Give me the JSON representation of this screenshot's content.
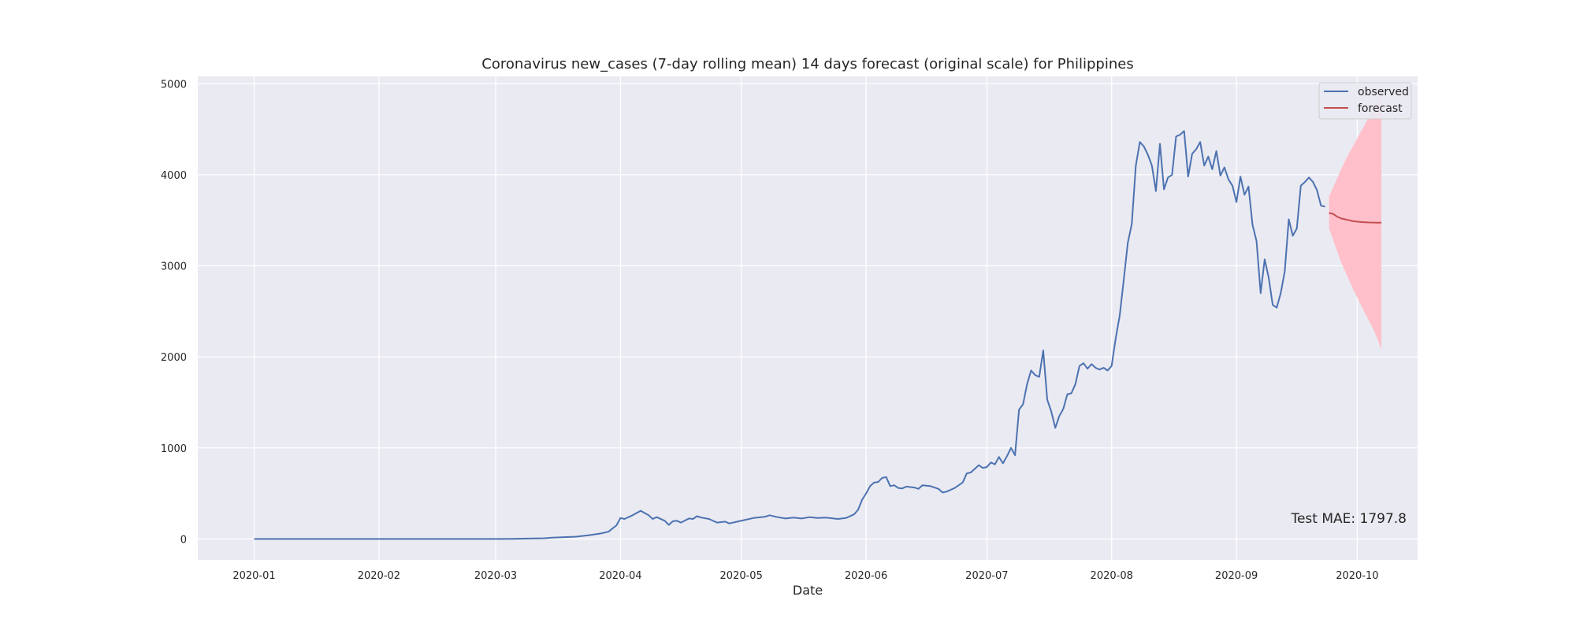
{
  "chart_data": {
    "type": "line",
    "title": "Coronavirus new_cases (7-day rolling mean) 14 days forecast (original scale) for Philippines",
    "xlabel": "Date",
    "ylabel": "",
    "x_type": "date",
    "xlim": [
      "2019-12-18",
      "2020-10-16"
    ],
    "ylim": [
      -230,
      5080
    ],
    "x_ticks": [
      "2020-01-01",
      "2020-02-01",
      "2020-03-01",
      "2020-04-01",
      "2020-05-01",
      "2020-06-01",
      "2020-07-01",
      "2020-08-01",
      "2020-09-01",
      "2020-10-01"
    ],
    "x_tick_labels": [
      "2020-01",
      "2020-02",
      "2020-03",
      "2020-04",
      "2020-05",
      "2020-06",
      "2020-07",
      "2020-08",
      "2020-09",
      "2020-10"
    ],
    "y_ticks": [
      0,
      1000,
      2000,
      3000,
      4000,
      5000
    ],
    "y_tick_labels": [
      "0",
      "1000",
      "2000",
      "3000",
      "4000",
      "5000"
    ],
    "grid": true,
    "legend_position": "top-right",
    "annotation": "Test MAE: 1797.8",
    "colors": {
      "background": "#eaeaf2",
      "grid": "#ffffff",
      "observed": "#4c72b0",
      "forecast": "#c44e52",
      "confidence_band": "#ffc0cb"
    },
    "series": [
      {
        "name": "observed",
        "color": "#4c72b0",
        "points": [
          [
            "2020-01-01",
            0
          ],
          [
            "2020-02-01",
            0
          ],
          [
            "2020-03-01",
            0
          ],
          [
            "2020-03-05",
            2
          ],
          [
            "2020-03-10",
            5
          ],
          [
            "2020-03-13",
            8
          ],
          [
            "2020-03-15",
            15
          ],
          [
            "2020-03-18",
            20
          ],
          [
            "2020-03-21",
            25
          ],
          [
            "2020-03-24",
            40
          ],
          [
            "2020-03-27",
            60
          ],
          [
            "2020-03-29",
            80
          ],
          [
            "2020-03-31",
            150
          ],
          [
            "2020-04-01",
            230
          ],
          [
            "2020-04-02",
            220
          ],
          [
            "2020-04-04",
            260
          ],
          [
            "2020-04-06",
            310
          ],
          [
            "2020-04-08",
            260
          ],
          [
            "2020-04-09",
            220
          ],
          [
            "2020-04-10",
            240
          ],
          [
            "2020-04-12",
            200
          ],
          [
            "2020-04-13",
            155
          ],
          [
            "2020-04-14",
            195
          ],
          [
            "2020-04-15",
            200
          ],
          [
            "2020-04-16",
            180
          ],
          [
            "2020-04-18",
            225
          ],
          [
            "2020-04-19",
            220
          ],
          [
            "2020-04-20",
            250
          ],
          [
            "2020-04-21",
            235
          ],
          [
            "2020-04-23",
            220
          ],
          [
            "2020-04-25",
            180
          ],
          [
            "2020-04-27",
            190
          ],
          [
            "2020-04-28",
            170
          ],
          [
            "2020-04-30",
            190
          ],
          [
            "2020-05-02",
            210
          ],
          [
            "2020-05-04",
            230
          ],
          [
            "2020-05-07",
            245
          ],
          [
            "2020-05-08",
            260
          ],
          [
            "2020-05-10",
            240
          ],
          [
            "2020-05-12",
            225
          ],
          [
            "2020-05-14",
            235
          ],
          [
            "2020-05-16",
            225
          ],
          [
            "2020-05-18",
            240
          ],
          [
            "2020-05-20",
            230
          ],
          [
            "2020-05-22",
            235
          ],
          [
            "2020-05-25",
            220
          ],
          [
            "2020-05-27",
            230
          ],
          [
            "2020-05-29",
            270
          ],
          [
            "2020-05-30",
            320
          ],
          [
            "2020-05-31",
            430
          ],
          [
            "2020-06-01",
            500
          ],
          [
            "2020-06-02",
            580
          ],
          [
            "2020-06-03",
            620
          ],
          [
            "2020-06-04",
            625
          ],
          [
            "2020-06-05",
            670
          ],
          [
            "2020-06-06",
            680
          ],
          [
            "2020-06-07",
            580
          ],
          [
            "2020-06-08",
            590
          ],
          [
            "2020-06-09",
            560
          ],
          [
            "2020-06-10",
            555
          ],
          [
            "2020-06-11",
            575
          ],
          [
            "2020-06-13",
            565
          ],
          [
            "2020-06-14",
            550
          ],
          [
            "2020-06-15",
            590
          ],
          [
            "2020-06-17",
            580
          ],
          [
            "2020-06-19",
            550
          ],
          [
            "2020-06-20",
            510
          ],
          [
            "2020-06-21",
            520
          ],
          [
            "2020-06-22",
            540
          ],
          [
            "2020-06-23",
            560
          ],
          [
            "2020-06-24",
            590
          ],
          [
            "2020-06-25",
            620
          ],
          [
            "2020-06-26",
            720
          ],
          [
            "2020-06-27",
            730
          ],
          [
            "2020-06-29",
            810
          ],
          [
            "2020-06-30",
            780
          ],
          [
            "2020-07-01",
            790
          ],
          [
            "2020-07-02",
            840
          ],
          [
            "2020-07-03",
            820
          ],
          [
            "2020-07-04",
            900
          ],
          [
            "2020-07-05",
            830
          ],
          [
            "2020-07-06",
            910
          ],
          [
            "2020-07-07",
            1000
          ],
          [
            "2020-07-08",
            920
          ],
          [
            "2020-07-09",
            1420
          ],
          [
            "2020-07-10",
            1480
          ],
          [
            "2020-07-11",
            1700
          ],
          [
            "2020-07-12",
            1850
          ],
          [
            "2020-07-13",
            1800
          ],
          [
            "2020-07-14",
            1780
          ],
          [
            "2020-07-15",
            2070
          ],
          [
            "2020-07-16",
            1530
          ],
          [
            "2020-07-17",
            1400
          ],
          [
            "2020-07-18",
            1220
          ],
          [
            "2020-07-19",
            1350
          ],
          [
            "2020-07-20",
            1430
          ],
          [
            "2020-07-21",
            1590
          ],
          [
            "2020-07-22",
            1600
          ],
          [
            "2020-07-23",
            1700
          ],
          [
            "2020-07-24",
            1900
          ],
          [
            "2020-07-25",
            1930
          ],
          [
            "2020-07-26",
            1870
          ],
          [
            "2020-07-27",
            1920
          ],
          [
            "2020-07-28",
            1880
          ],
          [
            "2020-07-29",
            1860
          ],
          [
            "2020-07-30",
            1880
          ],
          [
            "2020-07-31",
            1850
          ],
          [
            "2020-08-01",
            1900
          ],
          [
            "2020-08-02",
            2200
          ],
          [
            "2020-08-03",
            2450
          ],
          [
            "2020-08-04",
            2840
          ],
          [
            "2020-08-05",
            3250
          ],
          [
            "2020-08-06",
            3460
          ],
          [
            "2020-08-07",
            4100
          ],
          [
            "2020-08-08",
            4360
          ],
          [
            "2020-08-09",
            4310
          ],
          [
            "2020-08-10",
            4220
          ],
          [
            "2020-08-11",
            4100
          ],
          [
            "2020-08-12",
            3820
          ],
          [
            "2020-08-13",
            4340
          ],
          [
            "2020-08-14",
            3840
          ],
          [
            "2020-08-15",
            3970
          ],
          [
            "2020-08-16",
            4000
          ],
          [
            "2020-08-17",
            4420
          ],
          [
            "2020-08-18",
            4440
          ],
          [
            "2020-08-19",
            4480
          ],
          [
            "2020-08-20",
            3980
          ],
          [
            "2020-08-21",
            4230
          ],
          [
            "2020-08-22",
            4280
          ],
          [
            "2020-08-23",
            4360
          ],
          [
            "2020-08-24",
            4100
          ],
          [
            "2020-08-25",
            4200
          ],
          [
            "2020-08-26",
            4060
          ],
          [
            "2020-08-27",
            4260
          ],
          [
            "2020-08-28",
            3990
          ],
          [
            "2020-08-29",
            4080
          ],
          [
            "2020-08-30",
            3950
          ],
          [
            "2020-08-31",
            3880
          ],
          [
            "2020-09-01",
            3700
          ],
          [
            "2020-09-02",
            3980
          ],
          [
            "2020-09-03",
            3780
          ],
          [
            "2020-09-04",
            3870
          ],
          [
            "2020-09-05",
            3450
          ],
          [
            "2020-09-06",
            3270
          ],
          [
            "2020-09-07",
            2700
          ],
          [
            "2020-09-08",
            3070
          ],
          [
            "2020-09-09",
            2870
          ],
          [
            "2020-09-10",
            2570
          ],
          [
            "2020-09-11",
            2540
          ],
          [
            "2020-09-12",
            2700
          ],
          [
            "2020-09-13",
            2940
          ],
          [
            "2020-09-14",
            3510
          ],
          [
            "2020-09-15",
            3330
          ],
          [
            "2020-09-16",
            3410
          ],
          [
            "2020-09-17",
            3880
          ],
          [
            "2020-09-18",
            3920
          ],
          [
            "2020-09-19",
            3970
          ],
          [
            "2020-09-20",
            3920
          ],
          [
            "2020-09-21",
            3830
          ],
          [
            "2020-09-22",
            3660
          ],
          [
            "2020-09-23",
            3650
          ]
        ]
      },
      {
        "name": "forecast",
        "color": "#c44e52",
        "points": [
          [
            "2020-09-24",
            3580
          ],
          [
            "2020-09-25",
            3570
          ],
          [
            "2020-09-26",
            3540
          ],
          [
            "2020-09-27",
            3520
          ],
          [
            "2020-09-28",
            3510
          ],
          [
            "2020-09-29",
            3500
          ],
          [
            "2020-09-30",
            3490
          ],
          [
            "2020-10-01",
            3485
          ],
          [
            "2020-10-02",
            3480
          ],
          [
            "2020-10-03",
            3478
          ],
          [
            "2020-10-04",
            3476
          ],
          [
            "2020-10-05",
            3475
          ],
          [
            "2020-10-06",
            3474
          ],
          [
            "2020-10-07",
            3473
          ]
        ]
      }
    ],
    "confidence_band": {
      "points": [
        [
          "2020-09-24",
          3410,
          3760
        ],
        [
          "2020-09-25",
          3290,
          3860
        ],
        [
          "2020-09-26",
          3160,
          3960
        ],
        [
          "2020-09-27",
          3040,
          4060
        ],
        [
          "2020-09-28",
          2940,
          4150
        ],
        [
          "2020-09-29",
          2840,
          4240
        ],
        [
          "2020-09-30",
          2740,
          4320
        ],
        [
          "2020-10-01",
          2650,
          4400
        ],
        [
          "2020-10-02",
          2560,
          4480
        ],
        [
          "2020-10-03",
          2470,
          4560
        ],
        [
          "2020-10-04",
          2390,
          4640
        ],
        [
          "2020-10-05",
          2300,
          4720
        ],
        [
          "2020-10-06",
          2200,
          4800
        ],
        [
          "2020-10-07",
          2080,
          4900
        ]
      ]
    }
  }
}
